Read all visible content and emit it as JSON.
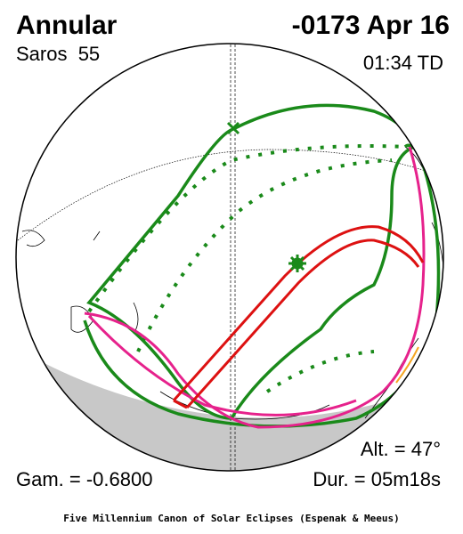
{
  "header": {
    "title": "Annular",
    "date": "-0173 Apr 16",
    "saros": "Saros  55",
    "time": "01:34 TD"
  },
  "footer": {
    "altitude": "Alt. = 47°",
    "gamma": "Gam. = -0.6800",
    "duration": "Dur. = 05m18s",
    "credit": "Five Millennium Canon of Solar Eclipses (Espenak & Meeus)"
  }
}
